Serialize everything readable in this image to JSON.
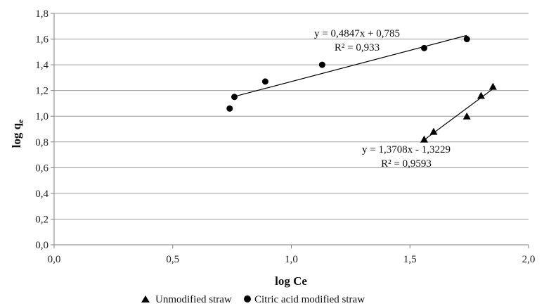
{
  "chart_data": {
    "type": "scatter",
    "xlabel": "log Ce",
    "ylabel": {
      "main": "log q",
      "sub": "e"
    },
    "xlim": [
      0,
      2
    ],
    "ylim": [
      0,
      1.8
    ],
    "xticks": [
      "0,0",
      "0,5",
      "1,0",
      "1,5",
      "2,0"
    ],
    "xtick_values": [
      0,
      0.5,
      1.0,
      1.5,
      2.0
    ],
    "yticks": [
      "0,0",
      "0,2",
      "0,4",
      "0,6",
      "0,8",
      "1,0",
      "1,2",
      "1,4",
      "1,6",
      "1,8"
    ],
    "ytick_values": [
      0,
      0.2,
      0.4,
      0.6,
      0.8,
      1.0,
      1.2,
      1.4,
      1.6,
      1.8
    ],
    "grid": "horizontal",
    "legend_position": "bottom",
    "series": [
      {
        "name": "Unmodified straw",
        "marker": "triangle",
        "x": [
          1.56,
          1.6,
          1.74,
          1.8,
          1.85
        ],
        "y": [
          0.82,
          0.88,
          1.0,
          1.16,
          1.23
        ],
        "trendline": {
          "x": [
            1.565,
            1.85
          ]
        },
        "equation": "y = 1,3708x - 1,3229",
        "r2": "R² = 0,9593"
      },
      {
        "name": "Citric acid modified straw",
        "marker": "circle",
        "x": [
          0.74,
          0.76,
          0.89,
          1.13,
          1.56,
          1.74
        ],
        "y": [
          1.06,
          1.15,
          1.27,
          1.4,
          1.53,
          1.6
        ],
        "trendline": {
          "x": [
            0.75,
            1.74
          ]
        },
        "equation": "y = 0,4847x + 0,785",
        "r2": "R² = 0,933"
      }
    ]
  },
  "colors": {
    "axis": "#7f7f7f",
    "grid": "#9a9a9a",
    "marker": "#000000",
    "line": "#000000"
  }
}
